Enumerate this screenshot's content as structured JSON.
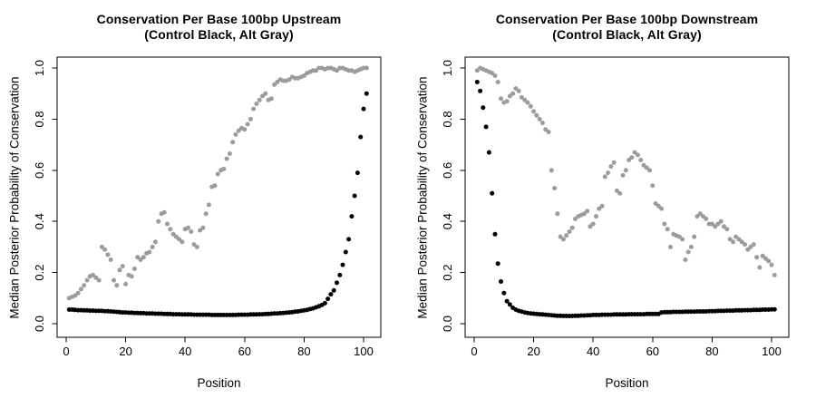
{
  "window": {
    "background": "#ffffff",
    "foreground": "#000000"
  },
  "chart_data": [
    {
      "type": "scatter",
      "title": "Conservation Per Base 100bp Upstream",
      "subtitle": "(Control Black, Alt Gray)",
      "xlabel": "Position",
      "ylabel": "Median Posterior Probability of Conservation",
      "xlim": [
        0,
        100
      ],
      "ylim": [
        0.0,
        1.0
      ],
      "grid": false,
      "legend": "none",
      "x_ticks": [
        0,
        20,
        40,
        60,
        80,
        100
      ],
      "y_ticks": [
        "0.0",
        "0.2",
        "0.4",
        "0.6",
        "0.8",
        "1.0"
      ],
      "x_start": 1,
      "x_step": 1,
      "n_points": 101,
      "series": [
        {
          "name": "Control",
          "color": "#000000",
          "values": [
            0.055,
            0.055,
            0.054,
            0.053,
            0.053,
            0.052,
            0.052,
            0.051,
            0.051,
            0.05,
            0.05,
            0.05,
            0.049,
            0.049,
            0.048,
            0.047,
            0.046,
            0.045,
            0.044,
            0.044,
            0.043,
            0.043,
            0.042,
            0.042,
            0.041,
            0.041,
            0.04,
            0.04,
            0.04,
            0.039,
            0.039,
            0.039,
            0.038,
            0.038,
            0.038,
            0.037,
            0.037,
            0.037,
            0.036,
            0.036,
            0.036,
            0.036,
            0.035,
            0.035,
            0.035,
            0.035,
            0.035,
            0.035,
            0.034,
            0.034,
            0.034,
            0.034,
            0.034,
            0.034,
            0.034,
            0.034,
            0.034,
            0.035,
            0.035,
            0.035,
            0.035,
            0.036,
            0.036,
            0.036,
            0.037,
            0.037,
            0.038,
            0.038,
            0.039,
            0.04,
            0.04,
            0.041,
            0.042,
            0.043,
            0.044,
            0.045,
            0.047,
            0.048,
            0.05,
            0.052,
            0.054,
            0.057,
            0.06,
            0.064,
            0.068,
            0.073,
            0.08,
            0.097,
            0.115,
            0.13,
            0.16,
            0.19,
            0.23,
            0.28,
            0.33,
            0.42,
            0.5,
            0.59,
            0.73,
            0.84,
            0.9
          ]
        },
        {
          "name": "Alt",
          "color": "#9c9c9c",
          "values": [
            0.1,
            0.105,
            0.11,
            0.12,
            0.135,
            0.15,
            0.17,
            0.185,
            0.19,
            0.18,
            0.17,
            0.3,
            0.29,
            0.27,
            0.25,
            0.17,
            0.15,
            0.21,
            0.225,
            0.155,
            0.19,
            0.185,
            0.215,
            0.26,
            0.25,
            0.26,
            0.275,
            0.28,
            0.3,
            0.32,
            0.4,
            0.43,
            0.435,
            0.39,
            0.37,
            0.35,
            0.34,
            0.33,
            0.32,
            0.37,
            0.375,
            0.36,
            0.31,
            0.3,
            0.365,
            0.375,
            0.43,
            0.465,
            0.535,
            0.54,
            0.585,
            0.6,
            0.605,
            0.645,
            0.665,
            0.71,
            0.74,
            0.755,
            0.765,
            0.76,
            0.78,
            0.8,
            0.84,
            0.86,
            0.875,
            0.89,
            0.9,
            0.875,
            0.88,
            0.935,
            0.945,
            0.955,
            0.95,
            0.95,
            0.955,
            0.965,
            0.96,
            0.96,
            0.965,
            0.97,
            0.98,
            0.985,
            0.99,
            0.99,
            1.0,
            1.0,
            0.995,
            1.0,
            1.0,
            0.995,
            0.99,
            1.0,
            1.0,
            0.995,
            0.99,
            0.99,
            0.985,
            0.99,
            0.995,
            1.0,
            1.0
          ]
        }
      ]
    },
    {
      "type": "scatter",
      "title": "Conservation Per Base 100bp Downstream",
      "subtitle": "(Control Black, Alt Gray)",
      "xlabel": "Position",
      "ylabel": "Median Posterior Probability of Conservation",
      "xlim": [
        0,
        100
      ],
      "ylim": [
        0.0,
        1.0
      ],
      "grid": false,
      "legend": "none",
      "x_ticks": [
        0,
        20,
        40,
        60,
        80,
        100
      ],
      "y_ticks": [
        "0.0",
        "0.2",
        "0.4",
        "0.6",
        "0.8",
        "1.0"
      ],
      "x_start": 1,
      "x_step": 1,
      "n_points": 101,
      "series": [
        {
          "name": "Control",
          "color": "#000000",
          "values": [
            0.945,
            0.91,
            0.845,
            0.77,
            0.67,
            0.51,
            0.35,
            0.235,
            0.165,
            0.12,
            0.088,
            0.075,
            0.062,
            0.055,
            0.05,
            0.047,
            0.044,
            0.042,
            0.04,
            0.039,
            0.038,
            0.037,
            0.036,
            0.035,
            0.034,
            0.033,
            0.032,
            0.031,
            0.031,
            0.03,
            0.03,
            0.03,
            0.03,
            0.031,
            0.031,
            0.032,
            0.032,
            0.033,
            0.033,
            0.034,
            0.034,
            0.034,
            0.035,
            0.035,
            0.035,
            0.035,
            0.036,
            0.036,
            0.036,
            0.036,
            0.036,
            0.037,
            0.037,
            0.037,
            0.037,
            0.037,
            0.037,
            0.038,
            0.038,
            0.038,
            0.038,
            0.038,
            0.044,
            0.045,
            0.045,
            0.045,
            0.046,
            0.046,
            0.046,
            0.046,
            0.047,
            0.047,
            0.047,
            0.047,
            0.048,
            0.048,
            0.048,
            0.048,
            0.049,
            0.049,
            0.049,
            0.05,
            0.05,
            0.05,
            0.051,
            0.051,
            0.051,
            0.052,
            0.052,
            0.052,
            0.053,
            0.053,
            0.053,
            0.054,
            0.054,
            0.054,
            0.055,
            0.055,
            0.055,
            0.056,
            0.056
          ]
        },
        {
          "name": "Alt",
          "color": "#9c9c9c",
          "values": [
            0.99,
            1.0,
            0.995,
            0.99,
            0.985,
            0.98,
            0.97,
            0.945,
            0.88,
            0.865,
            0.87,
            0.89,
            0.9,
            0.92,
            0.91,
            0.885,
            0.875,
            0.865,
            0.85,
            0.83,
            0.815,
            0.8,
            0.785,
            0.76,
            0.75,
            0.6,
            0.53,
            0.43,
            0.34,
            0.33,
            0.345,
            0.36,
            0.375,
            0.41,
            0.42,
            0.425,
            0.43,
            0.44,
            0.38,
            0.39,
            0.42,
            0.45,
            0.46,
            0.575,
            0.59,
            0.615,
            0.63,
            0.52,
            0.51,
            0.58,
            0.6,
            0.64,
            0.65,
            0.67,
            0.66,
            0.64,
            0.62,
            0.61,
            0.6,
            0.54,
            0.47,
            0.46,
            0.45,
            0.39,
            0.37,
            0.3,
            0.35,
            0.345,
            0.34,
            0.33,
            0.25,
            0.28,
            0.3,
            0.34,
            0.42,
            0.43,
            0.42,
            0.41,
            0.39,
            0.39,
            0.38,
            0.39,
            0.4,
            0.38,
            0.37,
            0.33,
            0.32,
            0.34,
            0.33,
            0.32,
            0.31,
            0.29,
            0.3,
            0.31,
            0.26,
            0.22,
            0.265,
            0.255,
            0.245,
            0.23,
            0.19
          ]
        }
      ]
    }
  ]
}
